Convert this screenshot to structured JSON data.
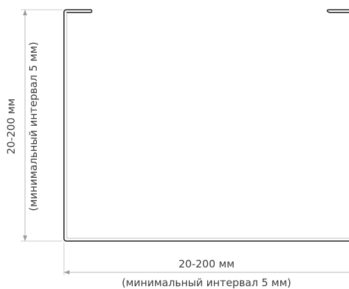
{
  "dimensions": {
    "height": {
      "value_label": "20-200 мм",
      "note_label": "(минимальный интервал 5 мм)"
    },
    "width": {
      "value_label": "20-200 мм",
      "note_label": "(минимальный интервал 5 мм)"
    }
  },
  "colors": {
    "profile_stroke": "#3a3a3a",
    "dimension_line": "#b5b5b5",
    "text": "#3c3c3c"
  }
}
